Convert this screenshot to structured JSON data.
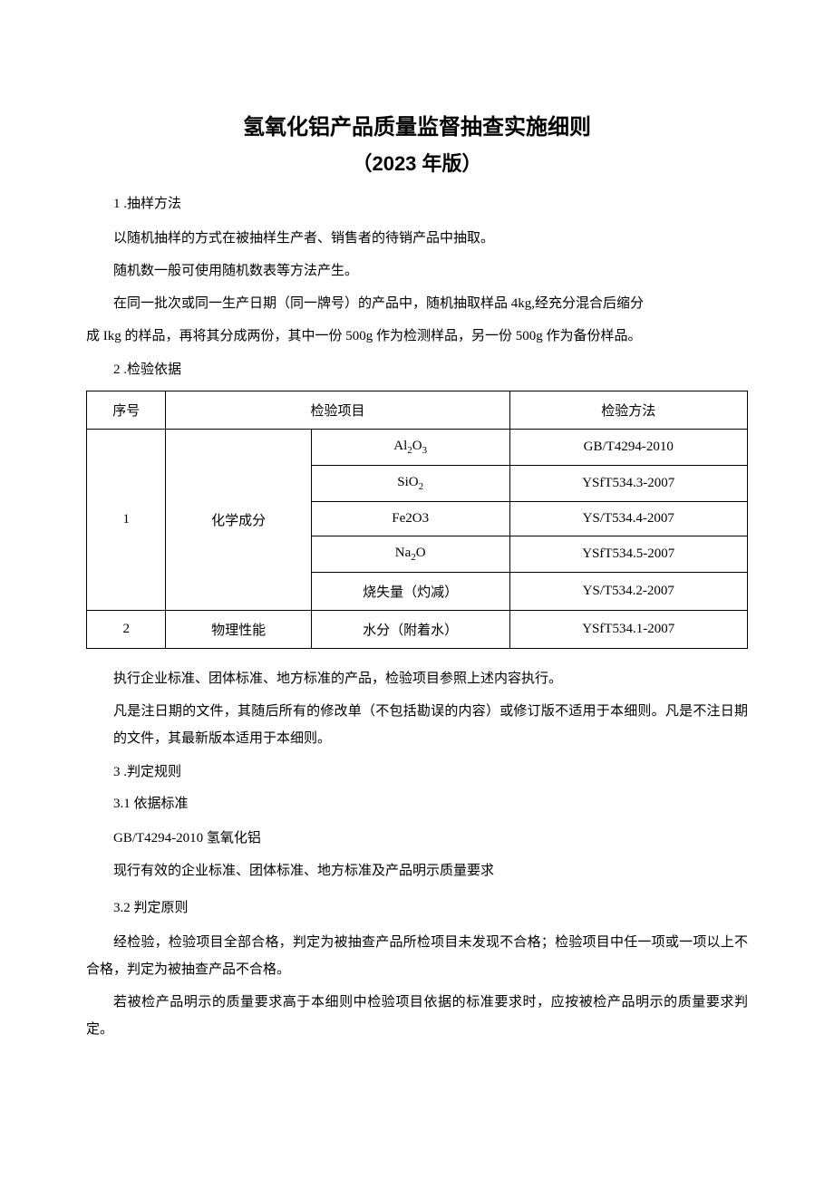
{
  "title": "氢氧化铝产品质量监督抽查实施细则",
  "subtitle": "（2023 年版）",
  "section1": {
    "heading": "1 .抽样方法",
    "para1": "以随机抽样的方式在被抽样生产者、销售者的待销产品中抽取。",
    "para2": "随机数一般可使用随机数表等方法产生。",
    "para3": "在同一批次或同一生产日期（同一牌号）的产品中，随机抽取样品 4kg,经充分混合后缩分",
    "para3b": "成 Ikg 的样品，再将其分成两份，其中一份 500g 作为检测样品，另一份 500g 作为备份样品。"
  },
  "section2": {
    "heading": "2  .检验依据",
    "table": {
      "headers": {
        "seq": "序号",
        "item": "检验项目",
        "method": "检验方法"
      },
      "rows": [
        {
          "seq": "1",
          "category": "化学成分",
          "item_html": "Al<sub>2</sub>O<sub>3</sub>",
          "method": "GB/T4294-2010"
        },
        {
          "item_html": "SiO<sub>2</sub>",
          "method": "YSfT534.3-2007"
        },
        {
          "item_html": "Fe2O3",
          "method": "YS/T534.4-2007"
        },
        {
          "item_html": "Na<sub>2</sub>O",
          "method": "YSfT534.5-2007"
        },
        {
          "item_html": "烧失量（灼减）",
          "method": "YS/T534.2-2007"
        },
        {
          "seq": "2",
          "category": "物理性能",
          "item_html": "水分（附着水）",
          "method": "YSfT534.1-2007"
        }
      ]
    },
    "note1": "执行企业标准、团体标准、地方标准的产品，检验项目参照上述内容执行。",
    "note2": "凡是注日期的文件，其随后所有的修改单（不包括勘误的内容）或修订版不适用于本细则。凡是不注日期的文件，其最新版本适用于本细则。"
  },
  "section3": {
    "heading": "3  .判定规则",
    "sub31_heading": "3.1   依据标准",
    "sub31_line1": "GB/T4294-2010 氢氧化铝",
    "sub31_line2": "现行有效的企业标准、团体标准、地方标准及产品明示质量要求",
    "sub32_heading": "3.2   判定原则",
    "sub32_para1": "经检验，检验项目全部合格，判定为被抽查产品所检项目未发现不合格；检验项目中任一项或一项以上不合格，判定为被抽查产品不合格。",
    "sub32_para2": "若被检产品明示的质量要求高于本细则中检验项目依据的标准要求时，应按被检产品明示的质量要求判定。"
  }
}
